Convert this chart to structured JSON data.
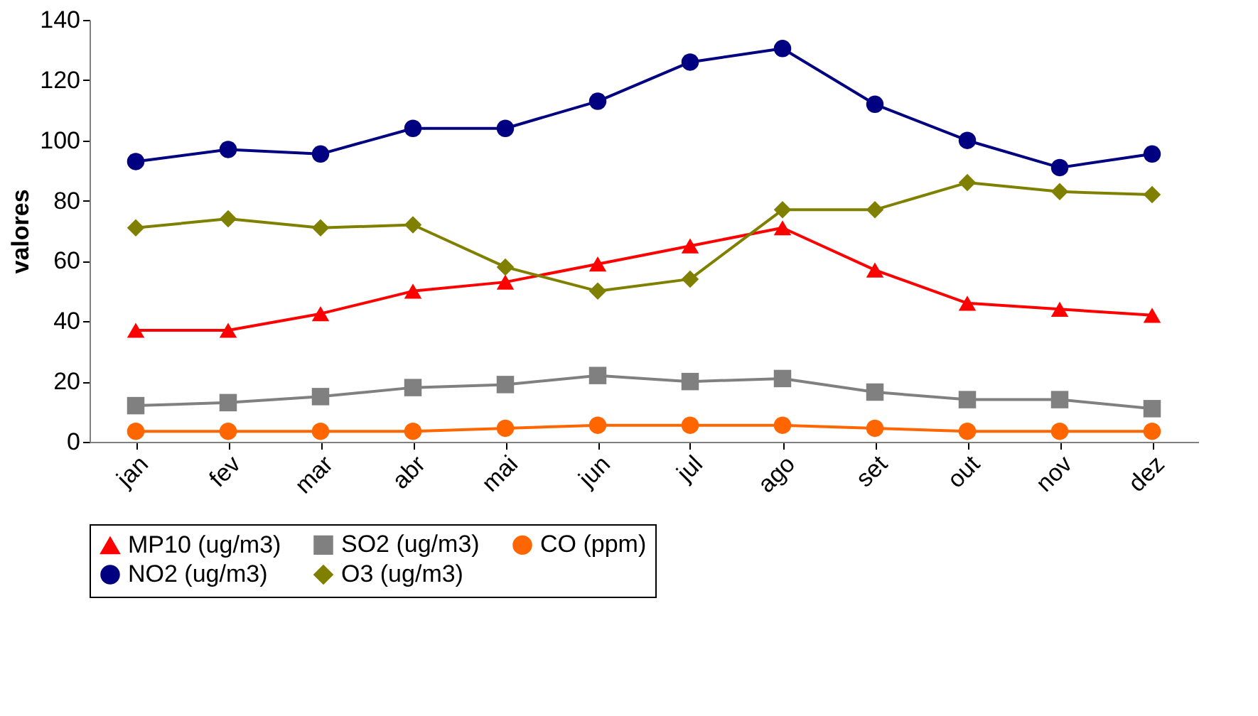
{
  "chart_data": {
    "type": "line",
    "ylabel": "valores",
    "categories": [
      "jan",
      "fev",
      "mar",
      "abr",
      "mai",
      "jun",
      "jul",
      "ago",
      "set",
      "out",
      "nov",
      "dez"
    ],
    "series": [
      {
        "name": "MP10 (ug/m3)",
        "color": "#ff0000",
        "marker": "triangle",
        "values": [
          37,
          37,
          42.5,
          50,
          53,
          59,
          65,
          71,
          57,
          46,
          44,
          42
        ]
      },
      {
        "name": "SO2 (ug/m3)",
        "color": "#808080",
        "marker": "square",
        "values": [
          12,
          13,
          15,
          18,
          19,
          22,
          20,
          21,
          16.5,
          14,
          14,
          11
        ]
      },
      {
        "name": "CO (ppm)",
        "color": "#ff6600",
        "marker": "circle",
        "values": [
          3.5,
          3.5,
          3.5,
          3.5,
          4.5,
          5.5,
          5.5,
          5.5,
          4.5,
          3.5,
          3.5,
          3.5
        ]
      },
      {
        "name": "NO2 (ug/m3)",
        "color": "#000080",
        "marker": "circle",
        "values": [
          93,
          97,
          95.5,
          104,
          104,
          113,
          126,
          130.5,
          112,
          100,
          91,
          95.5
        ]
      },
      {
        "name": "O3 (ug/m3)",
        "color": "#808000",
        "marker": "diamond",
        "values": [
          71,
          74,
          71,
          72,
          58,
          50,
          54,
          77,
          77,
          86,
          83,
          82
        ]
      }
    ],
    "ylim": [
      0,
      140
    ],
    "yticks": [
      0,
      20,
      40,
      60,
      80,
      100,
      120,
      140
    ],
    "grid": false,
    "legend": "bottom"
  }
}
